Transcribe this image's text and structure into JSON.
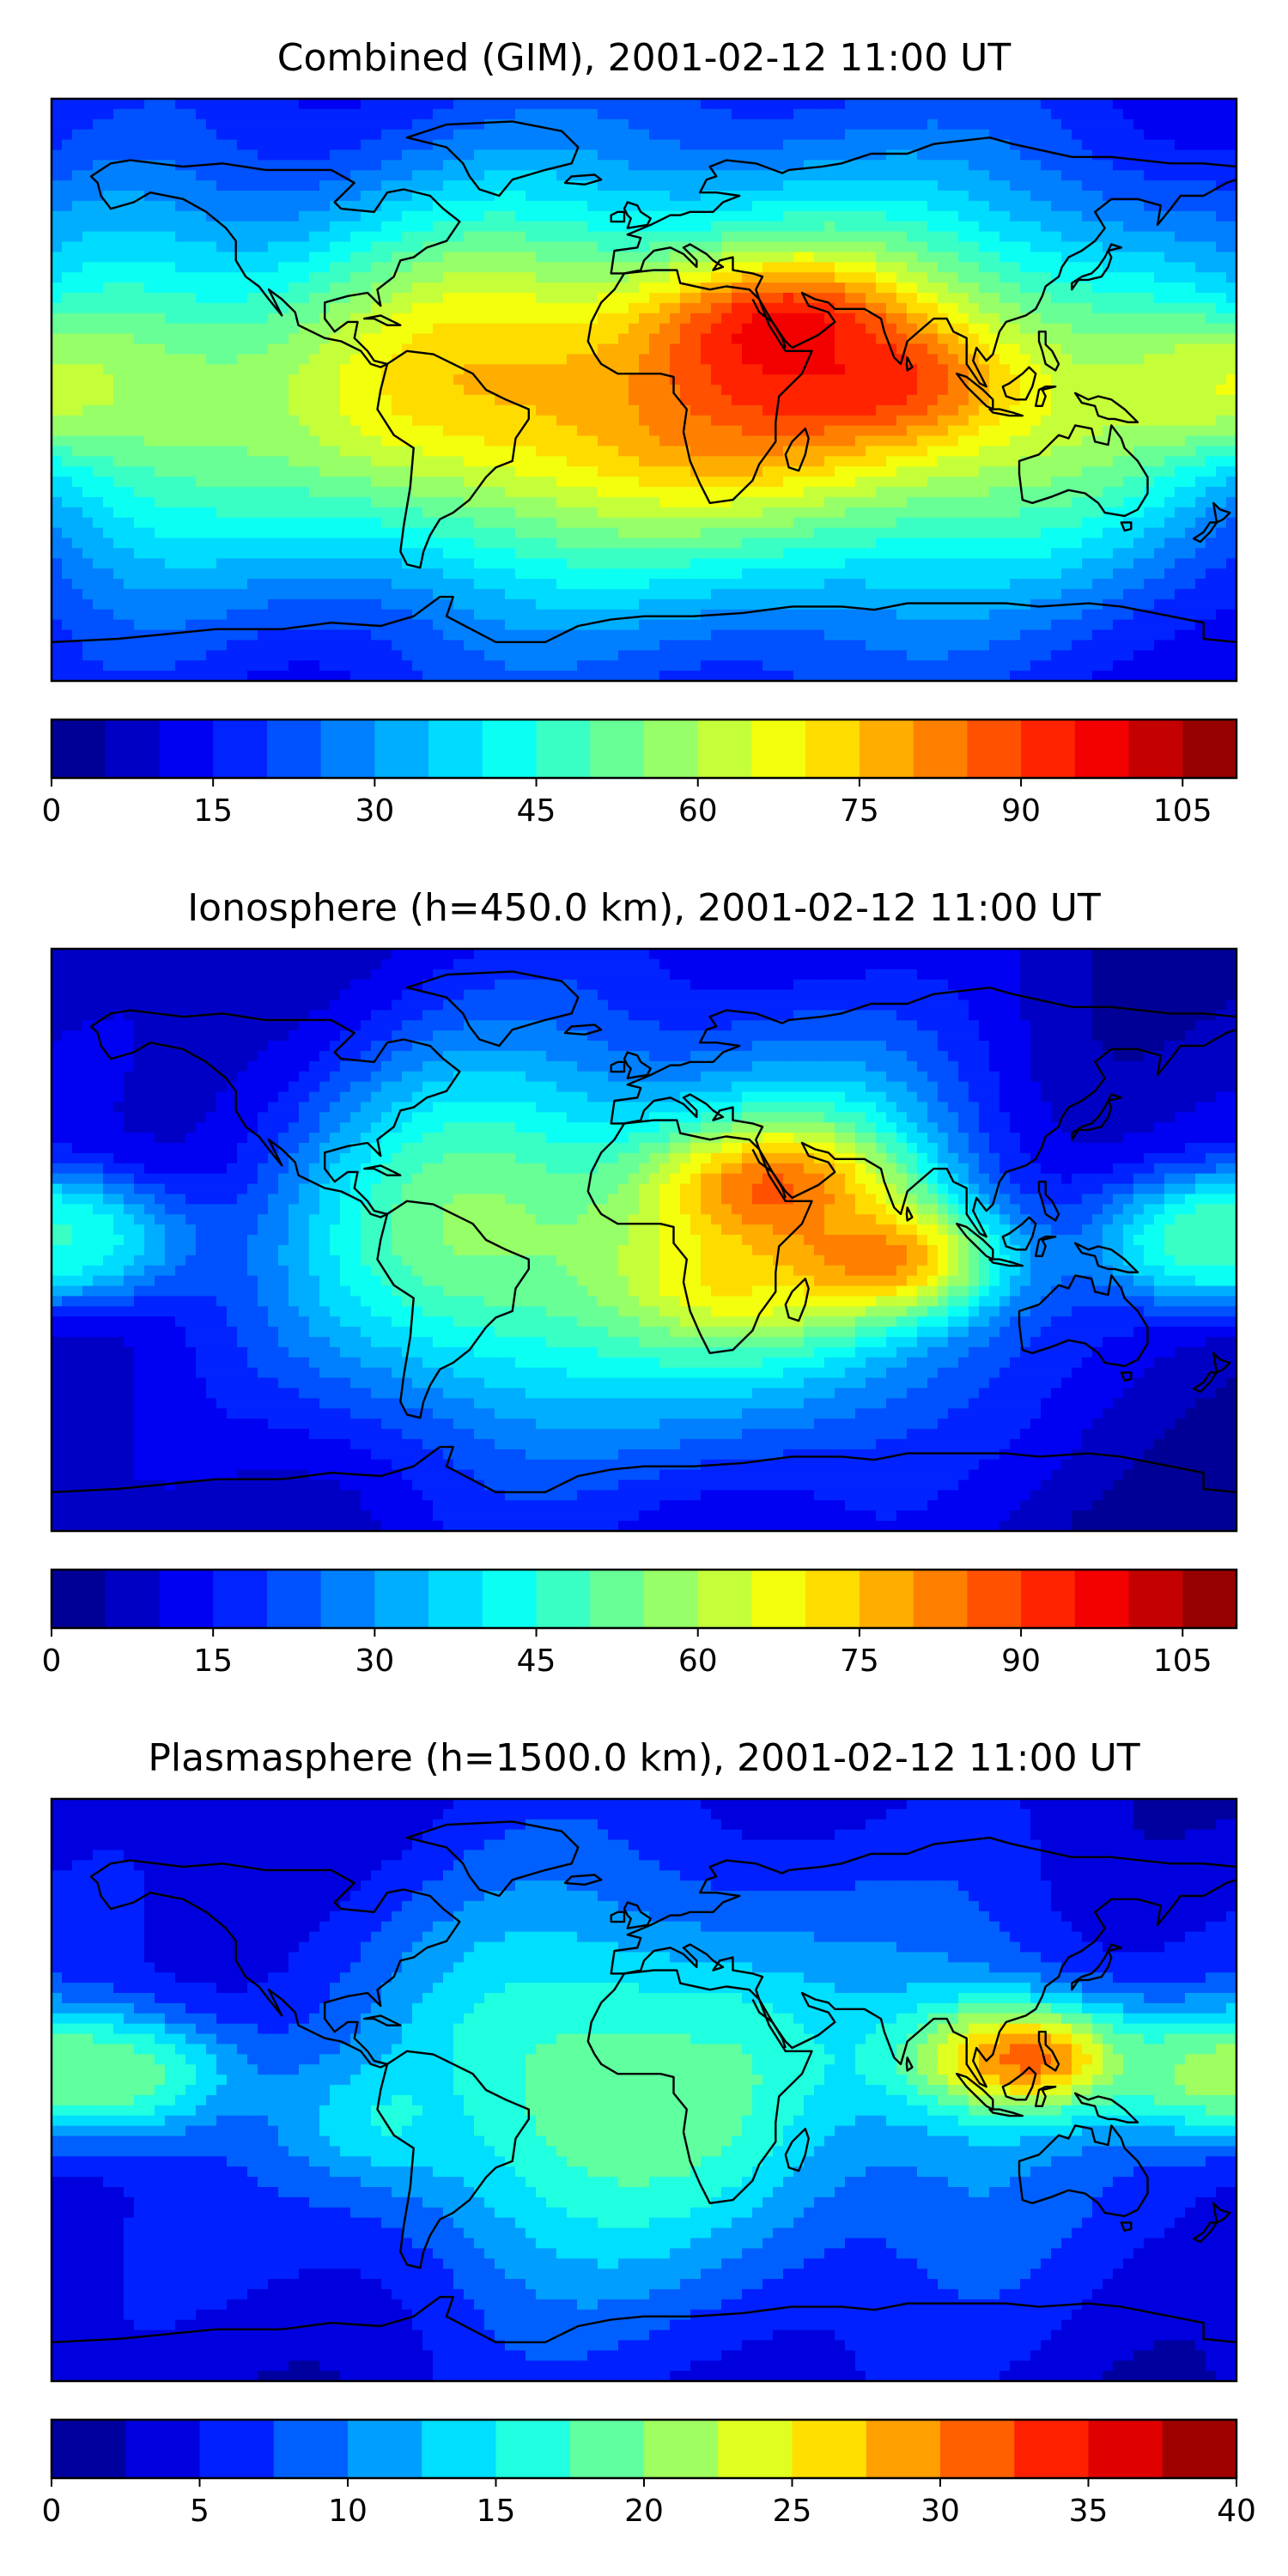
{
  "panels": [
    {
      "title": "Combined (GIM), 2001-02-12 11:00 UT",
      "colorbar": {
        "min": 0,
        "max": 110,
        "levels": 22,
        "ticks": [
          0,
          15,
          30,
          45,
          60,
          75,
          90,
          105
        ],
        "tick_labels": [
          "0",
          "15",
          "30",
          "45",
          "60",
          "75",
          "90",
          "105"
        ]
      },
      "background_level": 0.14,
      "bands": [
        {
          "center": 0.06,
          "width": 0.13,
          "amp": 0.3
        },
        {
          "center": 0.35,
          "width": 0.2,
          "amp": 0.5
        },
        {
          "center": 0.64,
          "width": 0.19,
          "amp": 0.52
        },
        {
          "center": 0.89,
          "width": 0.16,
          "amp": 0.28
        }
      ],
      "hotspots": [
        {
          "lon": 40,
          "lat": 18,
          "value": 95
        },
        {
          "lon": 72,
          "lat": 2,
          "value": 95
        },
        {
          "lon": 30,
          "lat": -2,
          "value": 80
        },
        {
          "lon": -175,
          "lat": 0,
          "value": 65
        },
        {
          "lon": 175,
          "lat": 2,
          "value": 60
        }
      ]
    },
    {
      "title": "Ionosphere  (h=450.0 km), 2001-02-12 11:00 UT",
      "colorbar": {
        "min": 0,
        "max": 110,
        "levels": 22,
        "ticks": [
          0,
          15,
          30,
          45,
          60,
          75,
          90,
          105
        ],
        "tick_labels": [
          "0",
          "15",
          "30",
          "45",
          "60",
          "75",
          "90",
          "105"
        ]
      },
      "background_level": 0.08,
      "bands": [
        {
          "center": 0.36,
          "width": 0.17,
          "amp": 0.42
        },
        {
          "center": 0.63,
          "width": 0.16,
          "amp": 0.42
        }
      ],
      "hotspots": [
        {
          "lon": 38,
          "lat": 16,
          "value": 83
        },
        {
          "lon": 72,
          "lat": -6,
          "value": 85
        },
        {
          "lon": 28,
          "lat": -10,
          "value": 68
        },
        {
          "lon": -178,
          "lat": 0,
          "value": 48
        },
        {
          "lon": 178,
          "lat": 0,
          "value": 46
        }
      ]
    },
    {
      "title": "Plasmasphere (h=1500.0 km), 2001-02-12 11:00 UT",
      "colorbar": {
        "min": 0,
        "max": 40,
        "levels": 16,
        "ticks": [
          0,
          5,
          10,
          15,
          20,
          25,
          30,
          35,
          40
        ],
        "tick_labels": [
          "0",
          "5",
          "10",
          "15",
          "20",
          "25",
          "30",
          "35",
          "40"
        ]
      },
      "background_level": 0.14,
      "bands": [
        {
          "center": 0.52,
          "width": 0.18,
          "amp": 0.3
        },
        {
          "center": 0.38,
          "width": 0.12,
          "amp": 0.14
        },
        {
          "center": 0.78,
          "width": 0.09,
          "amp": 0.12
        }
      ],
      "hotspots": [
        {
          "lon": 115,
          "lat": 10,
          "value": 32
        },
        {
          "lon": -160,
          "lat": 5,
          "value": 21
        },
        {
          "lon": 175,
          "lat": 5,
          "value": 20
        },
        {
          "lon": 0,
          "lat": 10,
          "value": 17
        },
        {
          "lon": -70,
          "lat": -10,
          "value": 15
        }
      ]
    }
  ],
  "colors": {
    "frame": "#000000",
    "coastline": "#000000"
  }
}
